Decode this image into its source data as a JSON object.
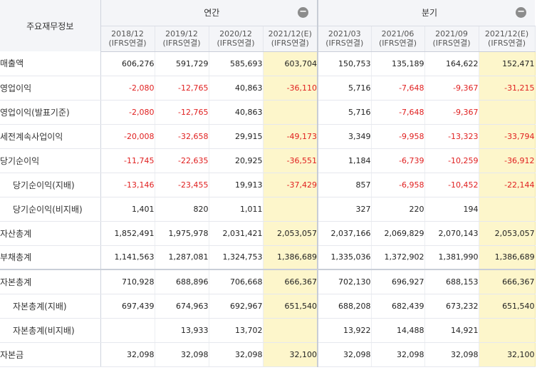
{
  "header": {
    "corner_label": "주요재무정보",
    "groups": {
      "annual": "연간",
      "quarterly": "분기"
    },
    "collapse_icon": "minus-circle-icon",
    "annual_dates": [
      {
        "date": "2018/12",
        "basis": "(IFRS연결)"
      },
      {
        "date": "2019/12",
        "basis": "(IFRS연결)"
      },
      {
        "date": "2020/12",
        "basis": "(IFRS연결)"
      },
      {
        "date": "2021/12(E)",
        "basis": "(IFRS연결)"
      }
    ],
    "quarter_dates": [
      {
        "date": "2021/03",
        "basis": "(IFRS연결)"
      },
      {
        "date": "2021/06",
        "basis": "(IFRS연결)"
      },
      {
        "date": "2021/09",
        "basis": "(IFRS연결)"
      },
      {
        "date": "2021/12(E)",
        "basis": "(IFRS연결)"
      }
    ]
  },
  "colors": {
    "negative": "#e02020",
    "estimate_bg": "#fdf6cb",
    "header_bg": "#f4f5f8"
  },
  "rows": [
    {
      "label": "매출액",
      "indent": false,
      "values": [
        "606,276",
        "591,729",
        "585,693",
        "603,704",
        "150,753",
        "135,189",
        "164,622",
        "152,471"
      ]
    },
    {
      "label": "영업이익",
      "indent": false,
      "values": [
        "-2,080",
        "-12,765",
        "40,863",
        "-36,110",
        "5,716",
        "-7,648",
        "-9,367",
        "-31,215"
      ]
    },
    {
      "label": "영업이익(발표기준)",
      "indent": false,
      "values": [
        "-2,080",
        "-12,765",
        "40,863",
        "",
        "5,716",
        "-7,648",
        "-9,367",
        ""
      ]
    },
    {
      "label": "세전계속사업이익",
      "indent": false,
      "values": [
        "-20,008",
        "-32,658",
        "29,915",
        "-49,173",
        "3,349",
        "-9,958",
        "-13,323",
        "-33,794"
      ]
    },
    {
      "label": "당기순이익",
      "indent": false,
      "values": [
        "-11,745",
        "-22,635",
        "20,925",
        "-36,551",
        "1,184",
        "-6,739",
        "-10,259",
        "-36,912"
      ]
    },
    {
      "label": "당기순이익(지배)",
      "indent": true,
      "values": [
        "-13,146",
        "-23,455",
        "19,913",
        "-37,429",
        "857",
        "-6,958",
        "-10,452",
        "-22,144"
      ]
    },
    {
      "label": "당기순이익(비지배)",
      "indent": true,
      "values": [
        "1,401",
        "820",
        "1,011",
        "",
        "327",
        "220",
        "194",
        ""
      ]
    },
    {
      "label": "자산총계",
      "indent": false,
      "values": [
        "1,852,491",
        "1,975,978",
        "2,031,421",
        "2,053,057",
        "2,037,166",
        "2,069,829",
        "2,070,143",
        "2,053,057"
      ]
    },
    {
      "label": "부채총계",
      "indent": false,
      "values": [
        "1,141,563",
        "1,287,081",
        "1,324,753",
        "1,386,689",
        "1,335,036",
        "1,372,902",
        "1,381,990",
        "1,386,689"
      ]
    },
    {
      "label": "자본총계",
      "indent": false,
      "values": [
        "710,928",
        "688,896",
        "706,668",
        "666,367",
        "702,130",
        "696,927",
        "688,153",
        "666,367"
      ]
    },
    {
      "label": "자본총계(지배)",
      "indent": true,
      "values": [
        "697,439",
        "674,963",
        "692,967",
        "651,540",
        "688,208",
        "682,439",
        "673,232",
        "651,540"
      ]
    },
    {
      "label": "자본총계(비지배)",
      "indent": true,
      "values": [
        "",
        "13,933",
        "13,702",
        "",
        "13,922",
        "14,488",
        "14,921",
        ""
      ]
    },
    {
      "label": "자본금",
      "indent": false,
      "values": [
        "32,098",
        "32,098",
        "32,098",
        "32,100",
        "32,098",
        "32,098",
        "32,098",
        "32,100"
      ]
    }
  ]
}
